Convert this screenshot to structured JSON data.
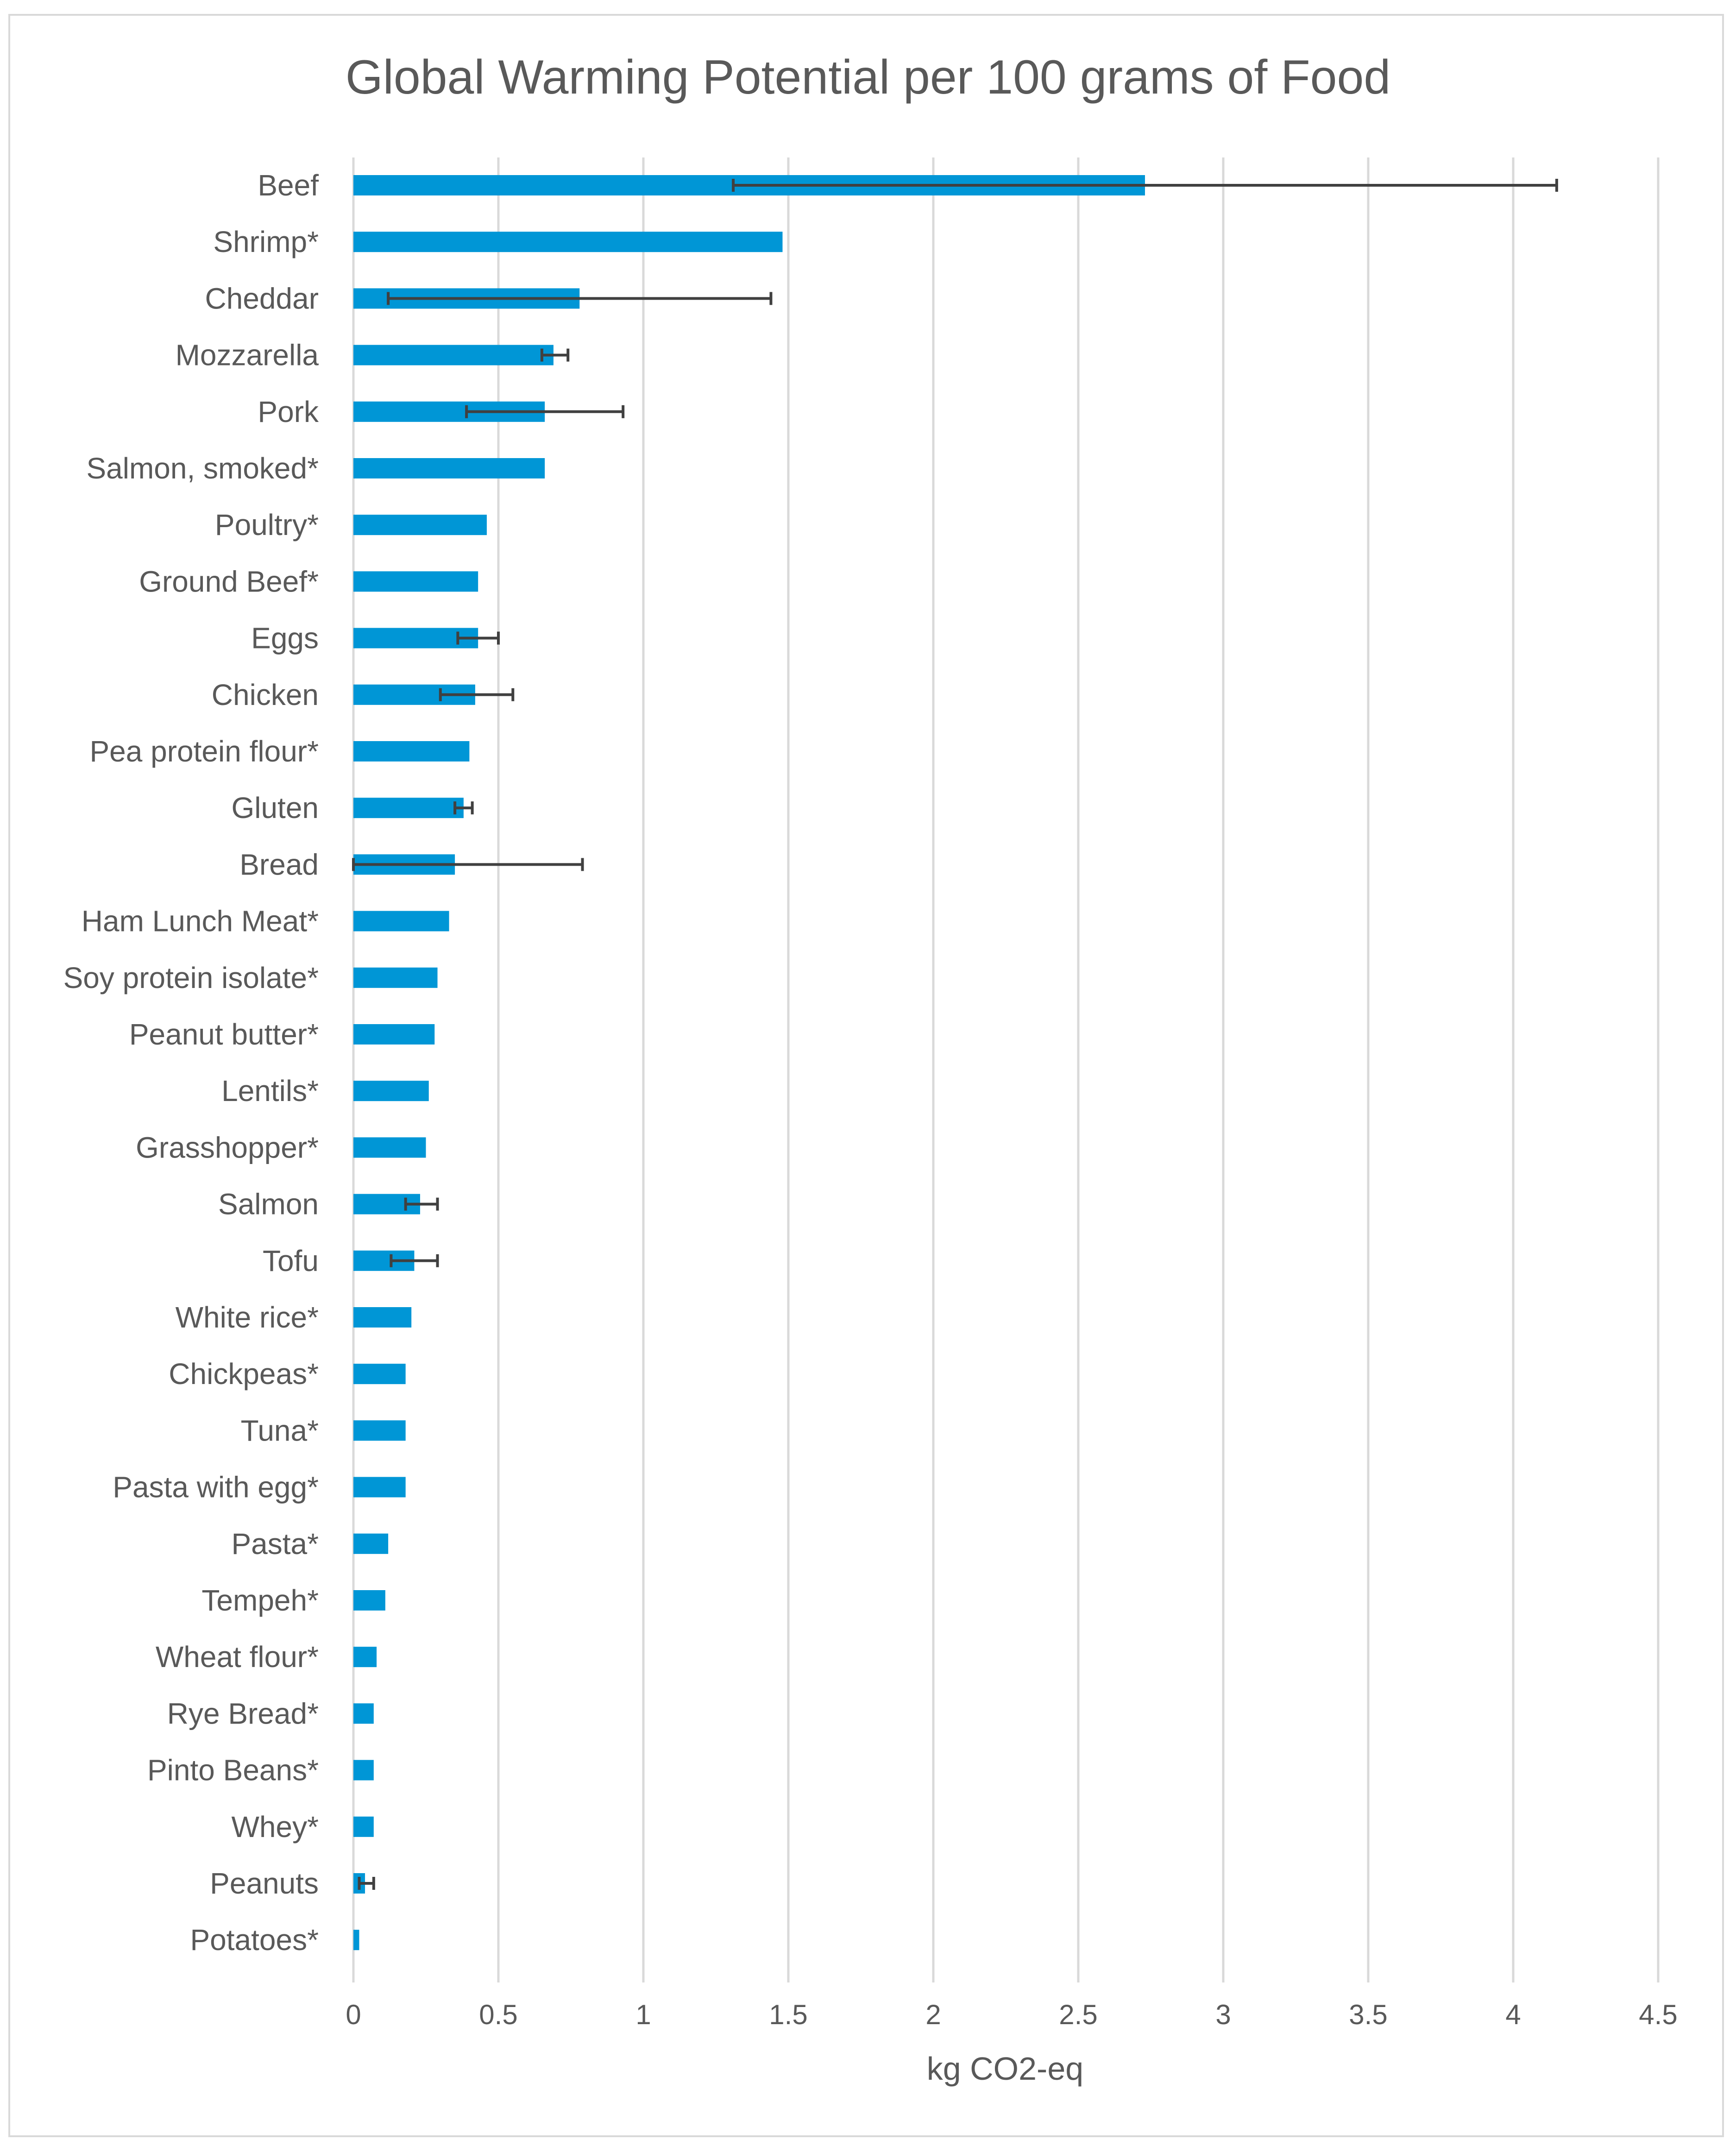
{
  "chart_data": {
    "type": "bar",
    "orientation": "horizontal",
    "title": "Global Warming Potential per 100 grams of Food",
    "xlabel": "kg CO2-eq",
    "ylabel": "",
    "xlim": [
      0,
      4.5
    ],
    "xticks": [
      0,
      0.5,
      1,
      1.5,
      2,
      2.5,
      3,
      3.5,
      4,
      4.5
    ],
    "xtick_labels": [
      "0",
      "0.5",
      "1",
      "1.5",
      "2",
      "2.5",
      "3",
      "3.5",
      "4",
      "4.5"
    ],
    "grid": "vertical",
    "legend": "none",
    "bar_color": "#0096d6",
    "error_bar_color": "#404040",
    "categories": [
      "Beef",
      "Shrimp*",
      "Cheddar",
      "Mozzarella",
      "Pork",
      "Salmon, smoked*",
      "Poultry*",
      "Ground Beef*",
      "Eggs",
      "Chicken",
      "Pea protein flour*",
      "Gluten",
      "Bread",
      "Ham Lunch Meat*",
      "Soy protein isolate*",
      "Peanut butter*",
      "Lentils*",
      "Grasshopper*",
      "Salmon",
      "Tofu",
      "White rice*",
      "Chickpeas*",
      "Tuna*",
      "Pasta with egg*",
      "Pasta*",
      "Tempeh*",
      "Wheat flour*",
      "Rye Bread*",
      "Pinto Beans*",
      "Whey*",
      "Peanuts",
      "Potatoes*"
    ],
    "values": [
      2.73,
      1.48,
      0.78,
      0.69,
      0.66,
      0.66,
      0.46,
      0.43,
      0.43,
      0.42,
      0.4,
      0.38,
      0.35,
      0.33,
      0.29,
      0.28,
      0.26,
      0.25,
      0.23,
      0.21,
      0.2,
      0.18,
      0.18,
      0.18,
      0.12,
      0.11,
      0.08,
      0.07,
      0.07,
      0.07,
      0.04,
      0.02
    ],
    "error_low": [
      1.31,
      null,
      0.12,
      0.65,
      0.39,
      null,
      null,
      null,
      0.36,
      0.3,
      null,
      0.35,
      0.0,
      null,
      null,
      null,
      null,
      null,
      0.18,
      0.13,
      null,
      null,
      null,
      null,
      null,
      null,
      null,
      null,
      null,
      null,
      0.02,
      null
    ],
    "error_high": [
      4.15,
      null,
      1.44,
      0.74,
      0.93,
      null,
      null,
      null,
      0.5,
      0.55,
      null,
      0.41,
      0.79,
      null,
      null,
      null,
      null,
      null,
      0.29,
      0.29,
      null,
      null,
      null,
      null,
      null,
      null,
      null,
      null,
      null,
      null,
      0.07,
      null
    ]
  }
}
